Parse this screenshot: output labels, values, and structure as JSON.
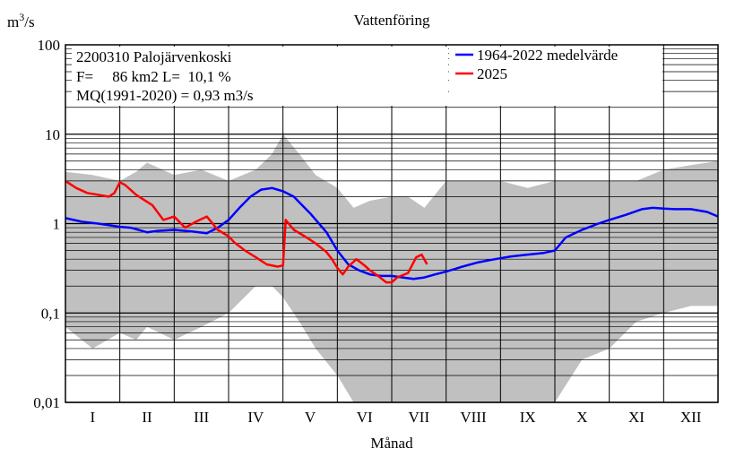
{
  "chart_data": {
    "type": "line",
    "title": "Vattenföring",
    "ylabel_base": "m",
    "ylabel_exp": "3",
    "ylabel_tail": "/s",
    "xlabel": "Månad",
    "yscale": "log",
    "ylim": [
      0.01,
      100
    ],
    "xlim": [
      0,
      12
    ],
    "y_ticks": [
      {
        "v": 100,
        "label": "100"
      },
      {
        "v": 10,
        "label": "10"
      },
      {
        "v": 1,
        "label": "1"
      },
      {
        "v": 0.1,
        "label": "0,1"
      },
      {
        "v": 0.01,
        "label": "0,01"
      }
    ],
    "months": [
      "I",
      "II",
      "III",
      "IV",
      "V",
      "VI",
      "VII",
      "VIII",
      "IX",
      "X",
      "XI",
      "XII"
    ],
    "info": {
      "line1": "2200310 Palojärvenkoski",
      "line2": "F=     86 km2 L=  10,1 %",
      "line3": "MQ(1991-2020) = 0,93 m3/s"
    },
    "legend": {
      "position": "top-right"
    },
    "grid": true,
    "series": [
      {
        "name": "1964-2022 medelvärde",
        "color": "#0000ff",
        "x": [
          0,
          0.3,
          0.6,
          1.0,
          1.2,
          1.5,
          1.7,
          2.0,
          2.3,
          2.6,
          2.8,
          3.0,
          3.2,
          3.4,
          3.6,
          3.8,
          4.0,
          4.2,
          4.5,
          4.8,
          5.0,
          5.2,
          5.4,
          5.6,
          5.8,
          6.0,
          6.2,
          6.4,
          6.6,
          6.8,
          7.0,
          7.3,
          7.6,
          7.9,
          8.2,
          8.5,
          8.8,
          9.0,
          9.2,
          9.5,
          9.8,
          10.0,
          10.3,
          10.6,
          10.8,
          11.0,
          11.2,
          11.5,
          11.8,
          12.0
        ],
        "y": [
          1.15,
          1.05,
          1.0,
          0.92,
          0.9,
          0.8,
          0.83,
          0.85,
          0.82,
          0.78,
          0.9,
          1.1,
          1.5,
          2.0,
          2.4,
          2.5,
          2.3,
          2.0,
          1.3,
          0.8,
          0.5,
          0.35,
          0.3,
          0.27,
          0.26,
          0.26,
          0.25,
          0.24,
          0.25,
          0.27,
          0.29,
          0.33,
          0.37,
          0.4,
          0.43,
          0.45,
          0.47,
          0.5,
          0.7,
          0.85,
          1.0,
          1.1,
          1.25,
          1.45,
          1.5,
          1.47,
          1.45,
          1.45,
          1.35,
          1.2
        ]
      },
      {
        "name": "2025",
        "color": "#ff0000",
        "x": [
          0,
          0.2,
          0.4,
          0.6,
          0.8,
          0.9,
          1.0,
          1.1,
          1.3,
          1.6,
          1.8,
          2.0,
          2.2,
          2.4,
          2.6,
          2.8,
          3.0,
          3.1,
          3.3,
          3.5,
          3.7,
          3.9,
          4.0,
          4.05,
          4.2,
          4.4,
          4.6,
          4.8,
          4.9,
          5.0,
          5.1,
          5.2,
          5.35,
          5.5,
          5.6,
          5.75,
          5.9,
          6.0,
          6.1,
          6.3,
          6.45,
          6.55,
          6.65
        ],
        "y": [
          3.0,
          2.5,
          2.2,
          2.1,
          2.0,
          2.2,
          2.9,
          2.7,
          2.1,
          1.6,
          1.1,
          1.2,
          0.9,
          1.05,
          1.2,
          0.85,
          0.72,
          0.62,
          0.5,
          0.42,
          0.35,
          0.33,
          0.34,
          1.1,
          0.85,
          0.72,
          0.6,
          0.48,
          0.4,
          0.32,
          0.27,
          0.33,
          0.4,
          0.34,
          0.3,
          0.26,
          0.22,
          0.22,
          0.25,
          0.28,
          0.42,
          0.45,
          0.35
        ]
      }
    ],
    "envelope": {
      "color": "#c0c0c0",
      "x": [
        0,
        0.5,
        1.0,
        1.3,
        1.5,
        2.0,
        2.5,
        3.0,
        3.5,
        3.8,
        4.0,
        4.3,
        4.6,
        5.0,
        5.3,
        5.6,
        6.0,
        6.3,
        6.6,
        7.0,
        7.5,
        8.0,
        8.5,
        9.0,
        9.5,
        10.0,
        10.5,
        11.0,
        11.5,
        12.0
      ],
      "max": [
        3.8,
        3.5,
        3.0,
        3.8,
        4.8,
        3.5,
        4.0,
        3.0,
        4.0,
        6.0,
        10.0,
        6.0,
        3.5,
        2.5,
        1.5,
        1.8,
        2.0,
        2.0,
        1.5,
        3.0,
        3.0,
        3.0,
        2.5,
        3.0,
        3.0,
        3.0,
        3.0,
        4.0,
        4.5,
        5.0
      ],
      "min": [
        0.07,
        0.04,
        0.06,
        0.05,
        0.07,
        0.05,
        0.07,
        0.1,
        0.2,
        0.2,
        0.15,
        0.08,
        0.04,
        0.02,
        0.01,
        0.01,
        0.01,
        0.01,
        0.01,
        0.01,
        0.01,
        0.01,
        0.01,
        0.01,
        0.03,
        0.04,
        0.08,
        0.1,
        0.12,
        0.12
      ]
    }
  }
}
